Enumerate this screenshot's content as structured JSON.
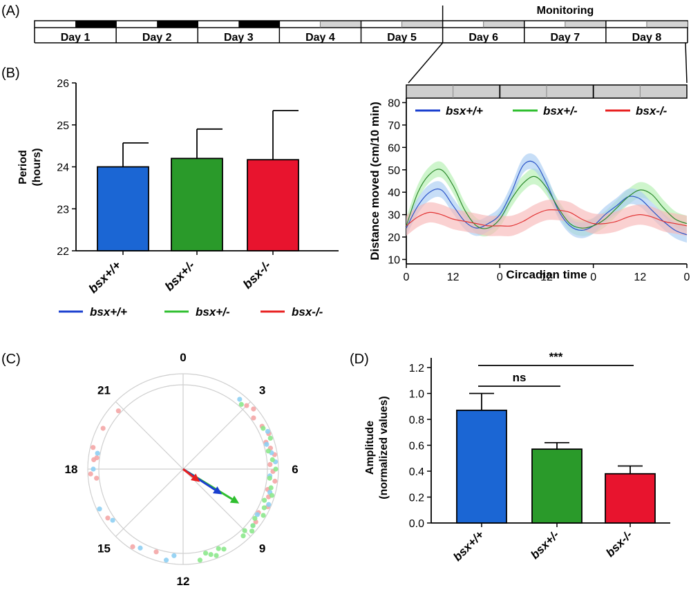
{
  "panel_labels": {
    "a": "(A)",
    "b": "(B)",
    "c": "(C)",
    "d": "(D)"
  },
  "timeline": {
    "monitoring_label": "Monitoring",
    "days": [
      "Day 1",
      "Day 2",
      "Day 3",
      "Day 4",
      "Day 5",
      "Day 6",
      "Day 7",
      "Day 8"
    ],
    "dark_day_phases": [
      1,
      2,
      3
    ],
    "grey_day_phases": [
      4,
      5,
      6,
      7,
      8
    ]
  },
  "colors": {
    "wt": "#1b66d4",
    "het": "#2a9a2a",
    "ko": "#e8142e",
    "wt_line": "#1a3fcf",
    "het_line": "#2fbf2f",
    "ko_line": "#e82020"
  },
  "legend": [
    "bsx+/+",
    "bsx+/-",
    "bsx-/-"
  ],
  "chart_data": [
    {
      "id": "period",
      "type": "bar",
      "categories": [
        "bsx+/+",
        "bsx+/-",
        "bsx-/-"
      ],
      "values": [
        24.0,
        24.2,
        24.17
      ],
      "errors": [
        0.57,
        0.7,
        1.17
      ],
      "ylabel_lines": [
        "Period",
        "(hours)"
      ],
      "ylim": [
        22,
        26
      ],
      "yticks": [
        "22",
        "23",
        "24",
        "25",
        "26"
      ]
    },
    {
      "id": "activity",
      "type": "line",
      "xlabel": "Circadian time",
      "ylabel": "Distance moved (cm/10 min)",
      "xticks": [
        "0",
        "12",
        "0",
        "12",
        "0",
        "12",
        "0"
      ],
      "yticks": [
        "10",
        "20",
        "30",
        "40",
        "50",
        "60",
        "70",
        "80"
      ],
      "ylim": [
        8,
        82
      ],
      "xlim": [
        0,
        72
      ],
      "series": [
        {
          "name": "bsx+/+",
          "x": [
            0,
            3,
            6,
            9,
            12,
            15,
            18,
            21,
            24,
            27,
            30,
            33,
            36,
            39,
            42,
            45,
            48,
            51,
            54,
            57,
            60,
            63,
            66,
            69,
            72
          ],
          "y": [
            24,
            34,
            40,
            41,
            34,
            27,
            24,
            26,
            30,
            40,
            52,
            53,
            44,
            32,
            25,
            23,
            25,
            30,
            34,
            38,
            37,
            32,
            27,
            23,
            21
          ],
          "band": 3.5
        },
        {
          "name": "bsx+/-",
          "x": [
            0,
            3,
            6,
            9,
            12,
            15,
            18,
            21,
            24,
            27,
            30,
            33,
            36,
            39,
            42,
            45,
            48,
            51,
            54,
            57,
            60,
            63,
            66,
            69,
            72
          ],
          "y": [
            25,
            40,
            48,
            50,
            43,
            32,
            25,
            24,
            28,
            37,
            44,
            47,
            42,
            33,
            26,
            24,
            25,
            28,
            33,
            38,
            41,
            39,
            33,
            28,
            26
          ],
          "band": 3.5
        },
        {
          "name": "bsx-/-",
          "x": [
            0,
            3,
            6,
            9,
            12,
            15,
            18,
            21,
            24,
            27,
            30,
            33,
            36,
            39,
            42,
            45,
            48,
            51,
            54,
            57,
            60,
            63,
            66,
            69,
            72
          ],
          "y": [
            25,
            29,
            31,
            30,
            28,
            27,
            26,
            25,
            25,
            25,
            27,
            30,
            32,
            32,
            31,
            28,
            26,
            26,
            27,
            29,
            30,
            29,
            27,
            26,
            25
          ],
          "band": 4.5
        }
      ]
    },
    {
      "id": "phase",
      "type": "scatter",
      "hour_labels": [
        "0",
        "3",
        "6",
        "9",
        "12",
        "15",
        "18",
        "21"
      ],
      "points": {
        "ko": [
          20.8,
          19.8,
          18.9,
          18.5,
          18.4,
          17.8,
          17.6,
          15.8,
          14.2,
          13.2,
          3.0,
          3.3,
          3.6,
          4.1,
          4.5,
          4.8,
          5.1,
          5.4,
          5.8,
          6.1,
          6.5,
          6.9,
          7.2,
          7.6,
          8.0,
          8.4
        ],
        "wt": [
          18.7,
          18.0,
          16.3,
          15.6,
          13.9,
          12.7,
          12.4,
          2.6,
          4.4,
          4.9,
          5.3,
          5.7,
          6.3,
          7.0,
          7.5,
          8.1,
          8.6
        ],
        "het": [
          2.8,
          4.2,
          4.7,
          5.2,
          5.6,
          6.0,
          6.4,
          6.8,
          7.1,
          7.4,
          7.7,
          8.0,
          8.3,
          8.6,
          8.8,
          9.0,
          9.2,
          11.3,
          11.0,
          10.8,
          10.6,
          10.4,
          10.2
        ]
      },
      "vectors": {
        "ko": [
          8.5,
          0.25
        ],
        "wt": [
          8.2,
          0.55
        ],
        "het": [
          8.1,
          0.78
        ]
      }
    },
    {
      "id": "amplitude",
      "type": "bar",
      "categories": [
        "bsx+/+",
        "bsx+/-",
        "bsx-/-"
      ],
      "values": [
        0.87,
        0.57,
        0.38
      ],
      "errors": [
        0.13,
        0.05,
        0.06
      ],
      "ylabel_lines": [
        "Amplitude",
        "(normalized values)"
      ],
      "ylim": [
        0,
        1.2
      ],
      "yticks": [
        "0.0",
        "0.2",
        "0.4",
        "0.6",
        "0.8",
        "1.0",
        "1.2"
      ],
      "significance": [
        {
          "from": 0,
          "to": 1,
          "label": "ns"
        },
        {
          "from": 0,
          "to": 2,
          "label": "***"
        }
      ]
    }
  ]
}
